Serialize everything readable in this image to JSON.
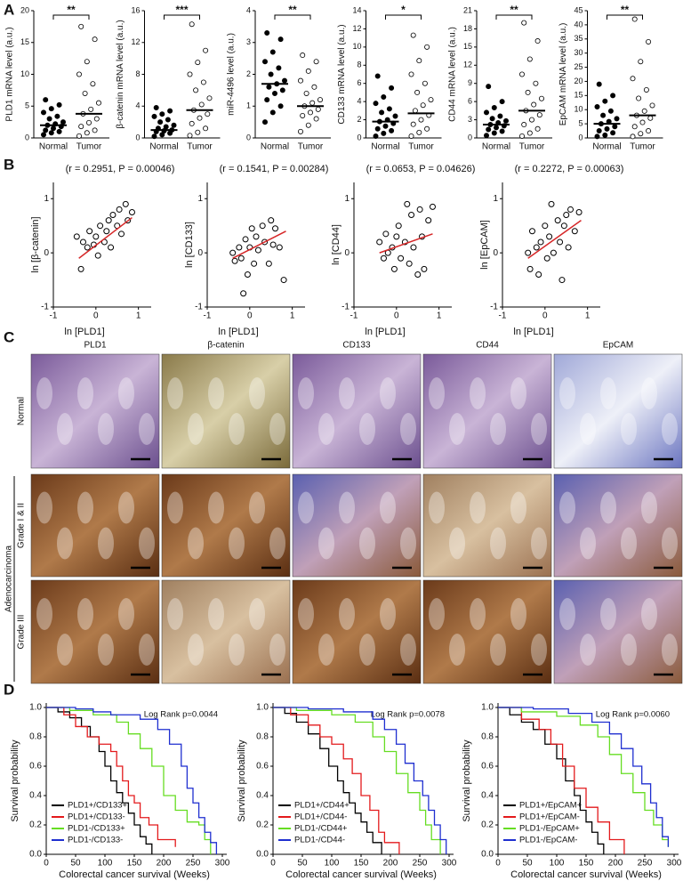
{
  "panels": [
    "A",
    "B",
    "C",
    "D"
  ],
  "histology": {
    "columns": [
      "PLD1",
      "β-catenin",
      "CD133",
      "CD44",
      "EpCAM"
    ],
    "rows": [
      "Normal",
      "Grade I & II",
      "Grade III"
    ],
    "group": "Adenocarcinoma"
  },
  "chart_data": [
    {
      "type": "dot",
      "ylabel": "PLD1 mRNA level (a.u.)",
      "categories": [
        "Normal",
        "Tumor"
      ],
      "significance": "**",
      "ylim": [
        0,
        20
      ],
      "yticks": [
        0,
        5,
        10,
        15,
        20
      ],
      "medians": [
        2,
        3.8
      ],
      "values": [
        [
          0.5,
          0.8,
          1,
          1.2,
          1.5,
          1.8,
          2,
          2.2,
          2.5,
          3,
          3.4,
          4,
          4.6,
          5.2,
          6
        ],
        [
          0.3,
          0.8,
          1.2,
          1.8,
          2.4,
          3,
          3.8,
          4.5,
          5.5,
          7,
          8.5,
          10,
          12,
          15.5,
          17.5
        ]
      ]
    },
    {
      "type": "dot",
      "ylabel": "β-catenin mRNA level (a.u.)",
      "categories": [
        "Normal",
        "Tumor"
      ],
      "significance": "***",
      "ylim": [
        0,
        16
      ],
      "yticks": [
        0,
        4,
        8,
        12,
        16
      ],
      "medians": [
        1,
        3.5
      ],
      "values": [
        [
          0.2,
          0.4,
          0.6,
          0.8,
          0.9,
          1,
          1.2,
          1.4,
          1.6,
          2,
          2.3,
          2.7,
          3,
          3.4,
          3.8
        ],
        [
          0.3,
          0.7,
          1.2,
          1.8,
          2.5,
          3,
          3.5,
          4.2,
          5,
          6,
          7,
          8,
          9.5,
          11,
          14.3
        ]
      ]
    },
    {
      "type": "dot",
      "ylabel": "miR-4496 level (a.u.)",
      "categories": [
        "Normal",
        "Tumor"
      ],
      "significance": "**",
      "ylim": [
        0,
        4
      ],
      "yticks": [
        0,
        1,
        2,
        3,
        4
      ],
      "medians": [
        1.7,
        1.0
      ],
      "values": [
        [
          0.5,
          0.8,
          1,
          1.2,
          1.4,
          1.5,
          1.6,
          1.7,
          1.8,
          2,
          2.2,
          2.4,
          2.7,
          3.1,
          3.3
        ],
        [
          0.2,
          0.4,
          0.6,
          0.7,
          0.8,
          0.9,
          1,
          1.1,
          1.2,
          1.4,
          1.6,
          1.8,
          2.1,
          2.4,
          2.6
        ]
      ]
    },
    {
      "type": "dot",
      "ylabel": "CD133 mRNA level (a.u.)",
      "categories": [
        "Normal",
        "Tumor"
      ],
      "significance": "*",
      "ylim": [
        0,
        14
      ],
      "yticks": [
        0,
        2,
        4,
        6,
        8,
        10,
        12,
        14
      ],
      "medians": [
        1.8,
        2.7
      ],
      "values": [
        [
          0.2,
          0.5,
          0.8,
          1,
          1.3,
          1.6,
          1.8,
          2,
          2.4,
          2.8,
          3.2,
          3.8,
          4.5,
          5.5,
          6.8
        ],
        [
          0.2,
          0.6,
          1,
          1.5,
          2,
          2.5,
          3,
          3.6,
          4.2,
          5,
          6,
          7,
          8.5,
          10,
          11.3
        ]
      ]
    },
    {
      "type": "dot",
      "ylabel": "CD44 mRNA level (a.u.)",
      "categories": [
        "Normal",
        "Tumor"
      ],
      "significance": "**",
      "ylim": [
        0,
        21
      ],
      "yticks": [
        0,
        3,
        6,
        9,
        12,
        15,
        18,
        21
      ],
      "medians": [
        2.2,
        4.5
      ],
      "values": [
        [
          0.4,
          0.8,
          1.1,
          1.4,
          1.7,
          2,
          2.2,
          2.5,
          2.8,
          3.2,
          3.6,
          4.2,
          5,
          6,
          8.5
        ],
        [
          0.3,
          0.8,
          1.5,
          2.2,
          3,
          3.8,
          4.5,
          5.5,
          6.5,
          7.5,
          9,
          10.5,
          13,
          16,
          19
        ]
      ]
    },
    {
      "type": "dot",
      "ylabel": "EpCAM mRNA level (a.u.)",
      "categories": [
        "Normal",
        "Tumor"
      ],
      "significance": "**",
      "ylim": [
        0,
        45
      ],
      "yticks": [
        0,
        5,
        10,
        15,
        20,
        25,
        30,
        35,
        40,
        45
      ],
      "medians": [
        5,
        8
      ],
      "values": [
        [
          0.5,
          1,
          1.8,
          2.5,
          3.2,
          4,
          5,
          5.8,
          6.8,
          8,
          9.5,
          11,
          13,
          15,
          19
        ],
        [
          0.5,
          1.5,
          2.5,
          4,
          5.5,
          7,
          8,
          9.5,
          11.5,
          14,
          17,
          21,
          27,
          34,
          42
        ]
      ]
    },
    {
      "type": "scatter",
      "title": "(r = 0.2951, P = 0.00046)",
      "xlabel": "ln [PLD1]",
      "ylabel": "ln [β-catenin]",
      "xlim": [
        -1,
        1.3
      ],
      "ylim": [
        -1,
        1.3
      ],
      "xticks": [
        -1,
        0,
        1
      ],
      "yticks": [
        -1,
        0,
        1
      ],
      "x": [
        -0.45,
        -0.35,
        -0.3,
        -0.2,
        -0.15,
        -0.05,
        0,
        0.05,
        0.1,
        0.2,
        0.25,
        0.3,
        0.35,
        0.4,
        0.5,
        0.55,
        0.6,
        0.7,
        0.75,
        0.85
      ],
      "y": [
        0.3,
        -0.3,
        0.2,
        0.1,
        0.4,
        0.15,
        0.3,
        -0.05,
        0.5,
        0.2,
        0.4,
        0.6,
        0.1,
        0.7,
        0.5,
        0.8,
        0.35,
        0.9,
        0.6,
        0.75
      ],
      "trend": {
        "x": [
          -0.4,
          0.85
        ],
        "y": [
          -0.1,
          0.65
        ],
        "color": "#d62728"
      }
    },
    {
      "type": "scatter",
      "title": "(r = 0.1541, P = 0.00284)",
      "xlabel": "ln [PLD1]",
      "ylabel": "ln [CD133]",
      "xlim": [
        -1,
        1.3
      ],
      "ylim": [
        -1,
        1.3
      ],
      "xticks": [
        -1,
        0,
        1
      ],
      "yticks": [
        -1,
        0,
        1
      ],
      "x": [
        -0.4,
        -0.35,
        -0.25,
        -0.2,
        -0.15,
        -0.1,
        -0.05,
        0,
        0.05,
        0.1,
        0.15,
        0.2,
        0.3,
        0.35,
        0.45,
        0.5,
        0.55,
        0.6,
        0.7,
        0.8
      ],
      "y": [
        0,
        -0.15,
        0.1,
        -0.1,
        -0.75,
        0.25,
        -0.4,
        0.1,
        0.45,
        -0.2,
        0.3,
        0.05,
        0.5,
        0.2,
        -0.2,
        0.6,
        0.15,
        0.45,
        0.1,
        -0.5
      ],
      "trend": {
        "x": [
          -0.4,
          0.85
        ],
        "y": [
          -0.1,
          0.4
        ],
        "color": "#d62728"
      }
    },
    {
      "type": "scatter",
      "title": "(r = 0.0653, P = 0.04626)",
      "xlabel": "ln [PLD1]",
      "ylabel": "ln [CD44]",
      "xlim": [
        -1,
        1.3
      ],
      "ylim": [
        -1,
        1.3
      ],
      "xticks": [
        -1,
        0,
        1
      ],
      "yticks": [
        -1,
        0,
        1
      ],
      "x": [
        -0.4,
        -0.3,
        -0.25,
        -0.2,
        -0.1,
        -0.05,
        0,
        0.05,
        0.1,
        0.2,
        0.25,
        0.3,
        0.35,
        0.4,
        0.5,
        0.55,
        0.6,
        0.65,
        0.75,
        0.85
      ],
      "y": [
        0.2,
        -0.1,
        0.35,
        0,
        0.1,
        -0.3,
        0.3,
        0.5,
        -0.1,
        0.2,
        0.9,
        -0.2,
        0.7,
        0.1,
        -0.4,
        0.8,
        0.3,
        -0.3,
        0.6,
        0.85
      ],
      "trend": {
        "x": [
          -0.4,
          0.85
        ],
        "y": [
          0,
          0.35
        ],
        "color": "#d62728"
      }
    },
    {
      "type": "scatter",
      "title": "(r = 0.2272, P = 0.00063)",
      "xlabel": "ln [PLD1]",
      "ylabel": "ln [EpCAM]",
      "xlim": [
        -1,
        1.3
      ],
      "ylim": [
        -1,
        1.3
      ],
      "xticks": [
        -1,
        0,
        1
      ],
      "yticks": [
        -1,
        0,
        1
      ],
      "x": [
        -0.4,
        -0.35,
        -0.3,
        -0.2,
        -0.15,
        -0.1,
        0,
        0.05,
        0.1,
        0.15,
        0.2,
        0.3,
        0.35,
        0.4,
        0.45,
        0.5,
        0.55,
        0.6,
        0.7,
        0.8
      ],
      "y": [
        0,
        -0.3,
        0.4,
        0.1,
        -0.4,
        0.2,
        0.5,
        -0.1,
        0.3,
        0.9,
        0,
        0.6,
        0.2,
        -0.5,
        0.5,
        0.7,
        0.1,
        0.8,
        0.4,
        0.75
      ],
      "trend": {
        "x": [
          -0.4,
          0.85
        ],
        "y": [
          -0.1,
          0.6
        ],
        "color": "#d62728"
      }
    },
    {
      "type": "step",
      "xlabel": "Colorectal cancer survival (Weeks)",
      "ylabel": "Survival probability",
      "annotation": "Log Rank p=0.0044",
      "xlim": [
        0,
        300
      ],
      "ylim": [
        0,
        1
      ],
      "xticks": [
        0,
        50,
        100,
        150,
        200,
        250,
        300
      ],
      "yticks": [
        {
          "value": 0,
          "label": "0.0"
        },
        {
          "value": 0.2,
          "label": "0.2"
        },
        {
          "value": 0.4,
          "label": "0.4"
        },
        {
          "value": 0.6,
          "label": "0.6"
        },
        {
          "value": 0.8,
          "label": "0.8"
        },
        {
          "value": 1,
          "label": "1.0"
        }
      ],
      "series": [
        {
          "name": "PLD1+/CD133+",
          "color": "#000000",
          "x": [
            0,
            20,
            40,
            60,
            75,
            90,
            100,
            110,
            120,
            130,
            140,
            150,
            160,
            170,
            180
          ],
          "values": [
            1,
            0.97,
            0.93,
            0.87,
            0.8,
            0.7,
            0.6,
            0.5,
            0.42,
            0.35,
            0.28,
            0.2,
            0.12,
            0.07,
            0
          ]
        },
        {
          "name": "PLD1+/CD133-",
          "color": "#e31a1c",
          "x": [
            0,
            30,
            50,
            70,
            90,
            110,
            120,
            130,
            140,
            150,
            160,
            175,
            190,
            220
          ],
          "values": [
            1,
            0.95,
            0.87,
            0.8,
            0.75,
            0.7,
            0.6,
            0.5,
            0.4,
            0.35,
            0.25,
            0.2,
            0.1,
            0.05
          ]
        },
        {
          "name": "PLD1-/CD133+",
          "color": "#66dd22",
          "x": [
            0,
            40,
            80,
            120,
            140,
            160,
            180,
            200,
            220,
            240,
            260,
            270,
            280
          ],
          "values": [
            1,
            0.98,
            0.95,
            0.9,
            0.82,
            0.72,
            0.6,
            0.4,
            0.3,
            0.22,
            0.2,
            0.1,
            0
          ]
        },
        {
          "name": "PLD1-/CD133-",
          "color": "#1f2fd0",
          "x": [
            0,
            50,
            80,
            110,
            160,
            190,
            210,
            230,
            240,
            250,
            260,
            270,
            280,
            290
          ],
          "values": [
            1,
            0.99,
            0.97,
            0.95,
            0.92,
            0.85,
            0.75,
            0.6,
            0.45,
            0.35,
            0.25,
            0.15,
            0.08,
            0
          ]
        }
      ]
    },
    {
      "type": "step",
      "xlabel": "Colorectal cancer survival (Weeks)",
      "ylabel": "Survival probability",
      "annotation": "Log Rank p=0.0078",
      "xlim": [
        0,
        300
      ],
      "ylim": [
        0,
        1
      ],
      "xticks": [
        0,
        50,
        100,
        150,
        200,
        250,
        300
      ],
      "yticks": [
        {
          "value": 0,
          "label": "0.0"
        },
        {
          "value": 0.2,
          "label": "0.2"
        },
        {
          "value": 0.4,
          "label": "0.4"
        },
        {
          "value": 0.6,
          "label": "0.6"
        },
        {
          "value": 0.8,
          "label": "0.8"
        },
        {
          "value": 1,
          "label": "1.0"
        }
      ],
      "series": [
        {
          "name": "PLD1+/CD44+",
          "color": "#000000",
          "x": [
            0,
            20,
            40,
            60,
            80,
            95,
            110,
            120,
            130,
            140,
            150,
            160,
            170,
            185
          ],
          "values": [
            1,
            0.96,
            0.9,
            0.82,
            0.72,
            0.6,
            0.5,
            0.42,
            0.35,
            0.28,
            0.22,
            0.15,
            0.08,
            0
          ]
        },
        {
          "name": "PLD1+/CD44-",
          "color": "#e31a1c",
          "x": [
            0,
            30,
            60,
            80,
            100,
            120,
            135,
            150,
            165,
            180,
            190,
            215
          ],
          "values": [
            1,
            0.95,
            0.88,
            0.8,
            0.75,
            0.65,
            0.55,
            0.4,
            0.3,
            0.15,
            0.08,
            0
          ]
        },
        {
          "name": "PLD1-/CD44+",
          "color": "#66dd22",
          "x": [
            0,
            40,
            100,
            140,
            170,
            190,
            210,
            230,
            250,
            260,
            270,
            285
          ],
          "values": [
            1,
            0.98,
            0.95,
            0.9,
            0.8,
            0.7,
            0.55,
            0.42,
            0.3,
            0.2,
            0.1,
            0
          ]
        },
        {
          "name": "PLD1-/CD44-",
          "color": "#1f2fd0",
          "x": [
            0,
            60,
            120,
            170,
            190,
            210,
            225,
            240,
            255,
            265,
            275,
            285,
            295
          ],
          "values": [
            1,
            0.99,
            0.97,
            0.92,
            0.85,
            0.75,
            0.62,
            0.5,
            0.4,
            0.3,
            0.2,
            0.1,
            0
          ]
        }
      ]
    },
    {
      "type": "step",
      "xlabel": "Colorectal cancer survival (Weeks)",
      "ylabel": "Survival probability",
      "annotation": "Log Rank p=0.0060",
      "xlim": [
        0,
        300
      ],
      "ylim": [
        0,
        1
      ],
      "xticks": [
        0,
        50,
        100,
        150,
        200,
        250,
        300
      ],
      "yticks": [
        {
          "value": 0,
          "label": "0.0"
        },
        {
          "value": 0.2,
          "label": "0.2"
        },
        {
          "value": 0.4,
          "label": "0.4"
        },
        {
          "value": 0.6,
          "label": "0.6"
        },
        {
          "value": 0.8,
          "label": "0.8"
        },
        {
          "value": 1,
          "label": "1.0"
        }
      ],
      "series": [
        {
          "name": "PLD1+/EpCAM+",
          "color": "#000000",
          "x": [
            0,
            20,
            40,
            60,
            80,
            100,
            115,
            130,
            140,
            150,
            160,
            170,
            180
          ],
          "values": [
            1,
            0.95,
            0.9,
            0.85,
            0.75,
            0.65,
            0.5,
            0.4,
            0.3,
            0.22,
            0.15,
            0.07,
            0
          ]
        },
        {
          "name": "PLD1+/EpCAM-",
          "color": "#e31a1c",
          "x": [
            0,
            40,
            70,
            90,
            110,
            130,
            150,
            170,
            190,
            215
          ],
          "values": [
            1,
            0.92,
            0.85,
            0.75,
            0.6,
            0.45,
            0.32,
            0.22,
            0.1,
            0
          ]
        },
        {
          "name": "PLD1-/EpCAM+",
          "color": "#66dd22",
          "x": [
            0,
            40,
            100,
            140,
            170,
            190,
            210,
            230,
            250,
            265,
            280,
            290
          ],
          "values": [
            1,
            0.97,
            0.94,
            0.88,
            0.8,
            0.68,
            0.55,
            0.42,
            0.3,
            0.2,
            0.1,
            0.05
          ]
        },
        {
          "name": "PLD1-/EpCAM-",
          "color": "#1f2fd0",
          "x": [
            0,
            60,
            120,
            160,
            190,
            210,
            230,
            245,
            260,
            270,
            280,
            290
          ],
          "values": [
            1,
            0.99,
            0.96,
            0.9,
            0.82,
            0.72,
            0.6,
            0.48,
            0.35,
            0.25,
            0.12,
            0.05
          ]
        }
      ]
    }
  ]
}
